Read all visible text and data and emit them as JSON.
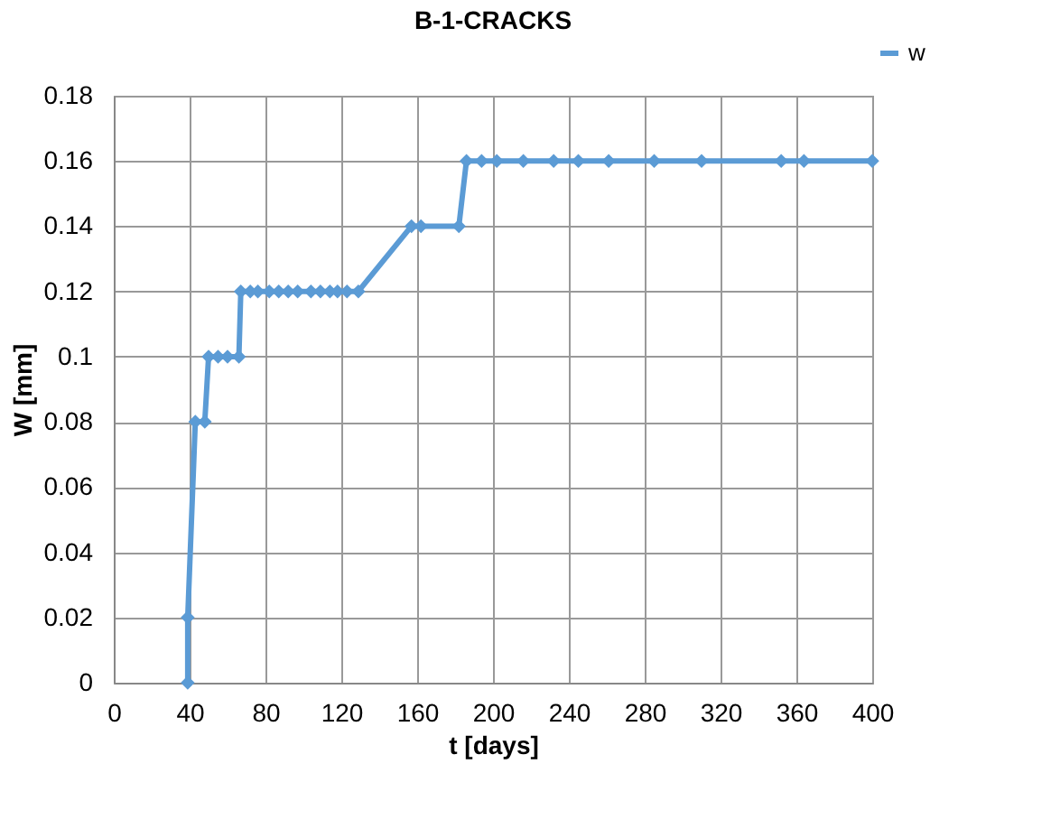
{
  "chart_data": {
    "type": "line",
    "title": "B-1-CRACKS",
    "xlabel": "t [days]",
    "ylabel": "W [mm]",
    "xlim": [
      0,
      400
    ],
    "xticks": [
      0,
      40,
      80,
      120,
      160,
      200,
      240,
      280,
      320,
      360,
      400
    ],
    "ylim": [
      0,
      0.18
    ],
    "yticks": [
      0,
      0.02,
      0.04,
      0.06,
      0.08,
      0.1,
      0.12,
      0.14,
      0.16,
      0.18
    ],
    "grid": true,
    "legend": "top right",
    "marker": "diamond",
    "line_style": "solid",
    "series": [
      {
        "name": "w",
        "color": "#5b9bd5",
        "x": [
          39,
          39,
          43,
          48,
          50,
          55,
          60,
          66,
          67,
          72,
          76,
          82,
          87,
          92,
          97,
          104,
          109,
          114,
          118,
          123,
          129,
          157,
          162,
          182,
          186,
          194,
          202,
          216,
          232,
          245,
          261,
          285,
          310,
          352,
          364,
          400
        ],
        "values": [
          0,
          0.02,
          0.08,
          0.08,
          0.1,
          0.1,
          0.1,
          0.1,
          0.12,
          0.12,
          0.12,
          0.12,
          0.12,
          0.12,
          0.12,
          0.12,
          0.12,
          0.12,
          0.12,
          0.12,
          0.12,
          0.14,
          0.14,
          0.14,
          0.16,
          0.16,
          0.16,
          0.16,
          0.16,
          0.16,
          0.16,
          0.16,
          0.16,
          0.16,
          0.16,
          0.16
        ]
      }
    ]
  }
}
